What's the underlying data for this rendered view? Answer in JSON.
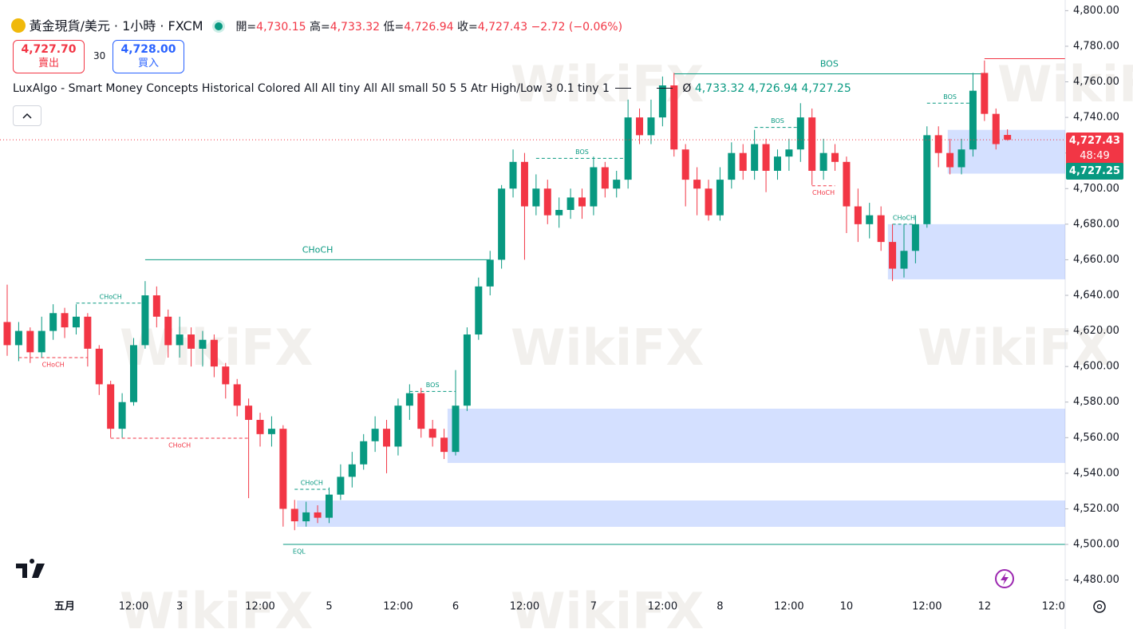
{
  "header": {
    "symbol": "黃金現貨/美元 · 1小時 · FXCM",
    "open_label": "開=",
    "open": "4,730.15",
    "high_label": "高=",
    "high": "4,733.32",
    "low_label": "低=",
    "low": "4,726.94",
    "close_label": "收=",
    "close": "4,727.43",
    "change": "−2.72 (−0.06%)"
  },
  "trade": {
    "sell_price": "4,727.70",
    "sell_label": "賣出",
    "spread": "30",
    "buy_price": "4,728.00",
    "buy_label": "買入"
  },
  "indicator": {
    "name": "LuxAlgo - Smart Money Concepts Historical Colored All All tiny All All small 50 5 5 Atr High/Low 3 0.1 tiny 1",
    "symbol": "Ø",
    "values": [
      "4,733.32",
      "4,726.94",
      "4,727.25"
    ]
  },
  "price_tags": {
    "last": "4,727.43",
    "countdown": "48:49",
    "indicator": "4,727.25"
  },
  "watermark": "WikiFX",
  "chart_data": {
    "type": "candlestick",
    "up_color": "#089981",
    "down_color": "#f23645",
    "categories": [
      null,
      null,
      null,
      null,
      null,
      "五月",
      null,
      null,
      null,
      null,
      null,
      "12:00",
      null,
      null,
      null,
      "3",
      null,
      null,
      null,
      null,
      null,
      null,
      "12:00",
      null,
      null,
      null,
      null,
      null,
      "5",
      null,
      null,
      null,
      null,
      null,
      "12:00",
      null,
      null,
      null,
      null,
      "6",
      null,
      null,
      null,
      null,
      null,
      "12:00",
      null,
      null,
      null,
      null,
      null,
      "7",
      null,
      null,
      null,
      null,
      null,
      "12:00",
      null,
      null,
      null,
      null,
      "8",
      null,
      null,
      null,
      null,
      null,
      "12:00",
      null,
      null,
      null,
      null,
      "10",
      null,
      null,
      null,
      null,
      null,
      null,
      "12:00",
      null,
      null,
      null,
      null,
      "12",
      null,
      null,
      null,
      null,
      null,
      "12:0"
    ],
    "open": [
      4625,
      4612,
      4620,
      4608,
      4620,
      4630,
      4622,
      4628,
      4610,
      4590,
      4565,
      4580,
      4612,
      4640,
      4628,
      4612,
      4618,
      4610,
      4615,
      4600,
      4590,
      4578,
      4570,
      4562,
      4565,
      4520,
      4513,
      4518,
      4515,
      4528,
      4538,
      4545,
      4558,
      4565,
      4555,
      4578,
      4585,
      4565,
      4560,
      4552,
      4578,
      4618,
      4645,
      4660,
      4700,
      4715,
      4690,
      4700,
      4685,
      4688,
      4695,
      4690,
      4712,
      4700,
      4705,
      4740,
      4730,
      4740,
      4758,
      4722,
      4705,
      4700,
      4685,
      4705,
      4720,
      4710,
      4725,
      4710,
      4718,
      4722,
      4740,
      4710,
      4720,
      4715,
      4690,
      4680,
      4685,
      4670,
      4655,
      4665,
      4680,
      4730,
      4720,
      4712,
      4722,
      4765,
      4742,
      4730.15,
      null,
      null,
      null,
      null
    ],
    "high": [
      4646,
      4625,
      4622,
      4628,
      4635,
      4633,
      4635,
      4630,
      4612,
      4592,
      4585,
      4616,
      4648,
      4645,
      4632,
      4628,
      4622,
      4620,
      4618,
      4602,
      4593,
      4582,
      4574,
      4572,
      4567,
      4525,
      4524,
      4522,
      4532,
      4545,
      4552,
      4562,
      4572,
      4570,
      4582,
      4590,
      4588,
      4570,
      4565,
      4598,
      4622,
      4650,
      4665,
      4702,
      4722,
      4720,
      4708,
      4705,
      4695,
      4700,
      4700,
      4718,
      4715,
      4710,
      4750,
      4745,
      4750,
      4763,
      4765,
      4725,
      4712,
      4705,
      4712,
      4726,
      4725,
      4733,
      4728,
      4722,
      4728,
      4748,
      4745,
      4728,
      4725,
      4718,
      4700,
      4692,
      4690,
      4680,
      4680,
      4685,
      4735,
      4735,
      4728,
      4728,
      4765,
      4772,
      4745,
      4733.32,
      null,
      null,
      null,
      null
    ],
    "low": [
      4606,
      4603,
      4602,
      4605,
      4615,
      4616,
      4618,
      4600,
      4584,
      4560,
      4560,
      4578,
      4610,
      4622,
      4605,
      4605,
      4600,
      4600,
      4594,
      4582,
      4572,
      4526,
      4555,
      4555,
      4510,
      4508,
      4510,
      4512,
      4512,
      4525,
      4532,
      4542,
      4552,
      4540,
      4550,
      4570,
      4560,
      4555,
      4548,
      4550,
      4575,
      4615,
      4640,
      4655,
      4695,
      4660,
      4685,
      4680,
      4678,
      4683,
      4683,
      4685,
      4695,
      4695,
      4700,
      4725,
      4725,
      4735,
      4718,
      4690,
      4685,
      4682,
      4682,
      4700,
      4705,
      4705,
      4698,
      4705,
      4710,
      4715,
      4702,
      4705,
      4710,
      4675,
      4670,
      4672,
      4665,
      4648,
      4650,
      4658,
      4678,
      4712,
      4708,
      4708,
      4718,
      4738,
      4722,
      4726.94,
      null,
      null,
      null,
      null
    ],
    "close": [
      4612,
      4620,
      4608,
      4620,
      4630,
      4622,
      4628,
      4610,
      4590,
      4565,
      4580,
      4612,
      4640,
      4628,
      4612,
      4618,
      4610,
      4615,
      4600,
      4590,
      4578,
      4570,
      4562,
      4565,
      4520,
      4513,
      4518,
      4515,
      4528,
      4538,
      4545,
      4558,
      4565,
      4555,
      4578,
      4585,
      4565,
      4560,
      4552,
      4578,
      4618,
      4645,
      4660,
      4700,
      4715,
      4690,
      4700,
      4685,
      4688,
      4695,
      4690,
      4712,
      4700,
      4705,
      4740,
      4730,
      4740,
      4758,
      4722,
      4705,
      4700,
      4685,
      4705,
      4720,
      4710,
      4725,
      4710,
      4718,
      4722,
      4740,
      4710,
      4720,
      4715,
      4690,
      4680,
      4685,
      4670,
      4655,
      4665,
      4680,
      4730,
      4720,
      4712,
      4722,
      4755,
      4742,
      4725,
      4727.43,
      null,
      null,
      null,
      null
    ],
    "ylim": [
      4474,
      4806
    ],
    "yticks": [
      {
        "value": 4480,
        "label": "4,480.00"
      },
      {
        "value": 4500,
        "label": "4,500.00"
      },
      {
        "value": 4520,
        "label": "4,520.00"
      },
      {
        "value": 4540,
        "label": "4,540.00"
      },
      {
        "value": 4560,
        "label": "4,560.00"
      },
      {
        "value": 4580,
        "label": "4,580.00"
      },
      {
        "value": 4600,
        "label": "4,600.00"
      },
      {
        "value": 4620,
        "label": "4,620.00"
      },
      {
        "value": 4640,
        "label": "4,640.00"
      },
      {
        "value": 4660,
        "label": "4,660.00"
      },
      {
        "value": 4680,
        "label": "4,680.00"
      },
      {
        "value": 4700,
        "label": "4,700.00"
      },
      {
        "value": 4720,
        "label": "4,720.00"
      },
      {
        "value": 4740,
        "label": "4,740.00"
      },
      {
        "value": 4760,
        "label": "4,760.00"
      },
      {
        "value": 4780,
        "label": "4,780.00"
      },
      {
        "value": 4800,
        "label": "4,800.00"
      }
    ],
    "structures": [
      {
        "label": "CHoCH",
        "level": 4660,
        "from": 12,
        "to": 42,
        "color": "#089981",
        "dashed": false,
        "size": "normal",
        "side": "above"
      },
      {
        "label": "CHoCH",
        "level": 4635.6,
        "from": 6,
        "to": 12,
        "color": "#089981",
        "dashed": true,
        "size": "small",
        "side": "above"
      },
      {
        "label": "CHoCH",
        "level": 4605,
        "from": 1,
        "to": 7,
        "color": "#f23645",
        "dashed": true,
        "size": "small",
        "side": "below"
      },
      {
        "label": "CHoCH",
        "level": 4559.7,
        "from": 9,
        "to": 21,
        "color": "#f23645",
        "dashed": true,
        "size": "small",
        "side": "below"
      },
      {
        "label": "CHoCH",
        "level": 4531,
        "from": 25,
        "to": 28,
        "color": "#089981",
        "dashed": true,
        "size": "small",
        "side": "above"
      },
      {
        "label": "EQL",
        "level": 4500,
        "from": 24,
        "to": 92,
        "color": "#089981",
        "dashed": false,
        "size": "small",
        "side": "below",
        "label_at": "start"
      },
      {
        "label": "BOS",
        "level": 4586,
        "from": 35,
        "to": 39,
        "color": "#089981",
        "dashed": true,
        "size": "small",
        "side": "above"
      },
      {
        "label": "BOS",
        "level": 4717,
        "from": 46,
        "to": 54,
        "color": "#089981",
        "dashed": true,
        "size": "small",
        "side": "above"
      },
      {
        "label": "BOS",
        "level": 4764.5,
        "from": 58,
        "to": 85,
        "color": "#089981",
        "dashed": false,
        "size": "normal",
        "side": "above"
      },
      {
        "label": "BOS",
        "level": 4734.4,
        "from": 65,
        "to": 69,
        "color": "#089981",
        "dashed": true,
        "size": "small",
        "side": "above"
      },
      {
        "label": "CHoCH",
        "level": 4701.6,
        "from": 70,
        "to": 72,
        "color": "#f23645",
        "dashed": true,
        "size": "small",
        "side": "below"
      },
      {
        "label": "CHoCH",
        "level": 4680,
        "from": 77,
        "to": 79,
        "color": "#089981",
        "dashed": true,
        "size": "small",
        "side": "above"
      },
      {
        "label": "BOS",
        "level": 4748,
        "from": 80,
        "to": 84,
        "color": "#089981",
        "dashed": true,
        "size": "small",
        "side": "above"
      },
      {
        "level": 4773,
        "from": 85,
        "to": 92,
        "color": "#f23645",
        "dashed": false
      }
    ],
    "zones": [
      {
        "top": 4576.3,
        "bottom": 4545.8,
        "from": 38.3
      },
      {
        "top": 4524.7,
        "bottom": 4509.9,
        "from": 25.2
      },
      {
        "top": 4680,
        "bottom": 4649,
        "from": 76.6
      },
      {
        "top": 4733,
        "bottom": 4708.4,
        "from": 81.8
      }
    ]
  }
}
